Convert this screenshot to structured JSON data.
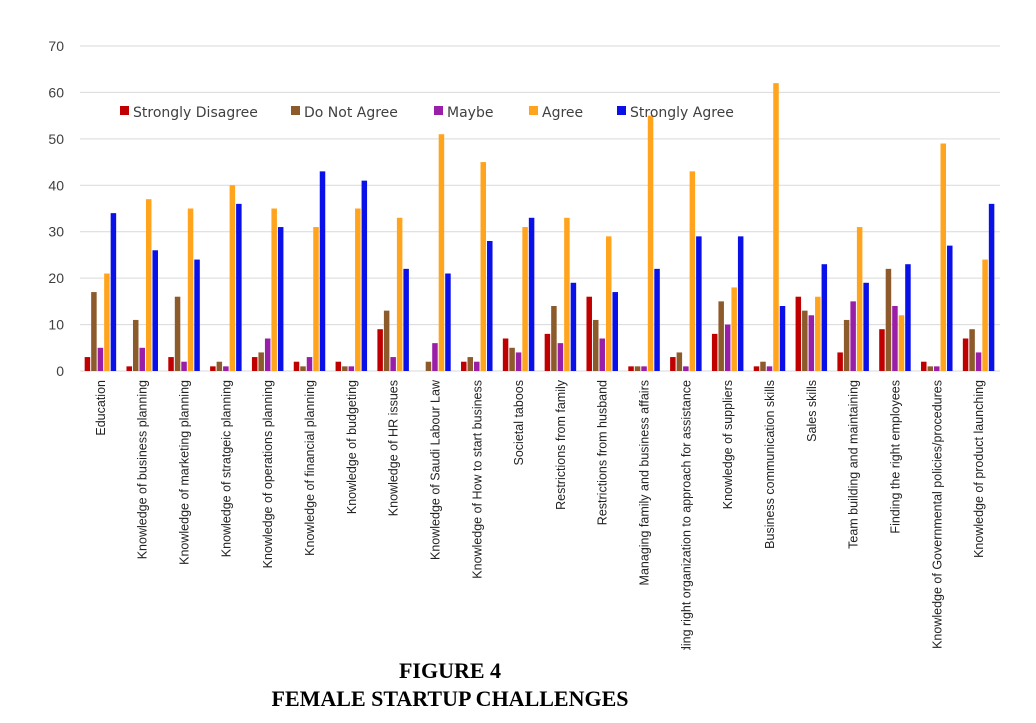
{
  "figure": {
    "number": "FIGURE 4",
    "title": "FEMALE STARTUP CHALLENGES"
  },
  "chart_data": {
    "type": "bar",
    "ylim": [
      0,
      70
    ],
    "yticks": [
      0,
      10,
      20,
      30,
      40,
      50,
      60,
      70
    ],
    "grid": true,
    "legend_position": "top-left",
    "categories": [
      "Education",
      "Knowledge of business planning",
      "Knowledge of marketing planning",
      "Knowledge of stratgeic planning",
      "Knowledge of operations planning",
      "Knowledge of financial planning",
      "Knowledge of budgeting",
      "Knowledge of HR issues",
      "Knowledge of Saudi Labour Law",
      "Knowledge of How to start business",
      "Societal taboos",
      "Restrictions from family",
      "Restrictions from husband",
      "Managing family and business affairs",
      "Finding  right organization to approach for assistance",
      "Knowledge of suppliers",
      "Business communication skills",
      "Sales skills",
      "Team building and maintaining",
      "Finding the right employees",
      "Knowledge of Governmental policies/procedures",
      "Knowledge of product launching"
    ],
    "series": [
      {
        "name": "Strongly Disagree",
        "color": "#c00000",
        "values": [
          3,
          1,
          3,
          1,
          3,
          2,
          2,
          9,
          0,
          2,
          7,
          8,
          16,
          1,
          3,
          8,
          1,
          16,
          4,
          9,
          2,
          7
        ]
      },
      {
        "name": "Do Not Agree",
        "color": "#8c5a2b",
        "values": [
          17,
          11,
          16,
          2,
          4,
          1,
          1,
          13,
          2,
          3,
          5,
          14,
          11,
          1,
          4,
          15,
          2,
          13,
          11,
          22,
          1,
          9
        ]
      },
      {
        "name": "Maybe",
        "color": "#9a1fa8",
        "values": [
          5,
          5,
          2,
          1,
          7,
          3,
          1,
          3,
          6,
          2,
          4,
          6,
          7,
          1,
          1,
          10,
          1,
          12,
          15,
          14,
          1,
          4
        ]
      },
      {
        "name": "Agree",
        "color": "#ffa41c",
        "values": [
          21,
          37,
          35,
          40,
          35,
          31,
          35,
          33,
          51,
          45,
          31,
          33,
          29,
          55,
          43,
          18,
          62,
          16,
          31,
          12,
          49,
          24
        ]
      },
      {
        "name": "Strongly Agree",
        "color": "#0a10e8",
        "values": [
          34,
          26,
          24,
          36,
          31,
          43,
          41,
          22,
          21,
          28,
          33,
          19,
          17,
          22,
          29,
          29,
          14,
          23,
          19,
          23,
          27,
          36
        ]
      }
    ]
  }
}
